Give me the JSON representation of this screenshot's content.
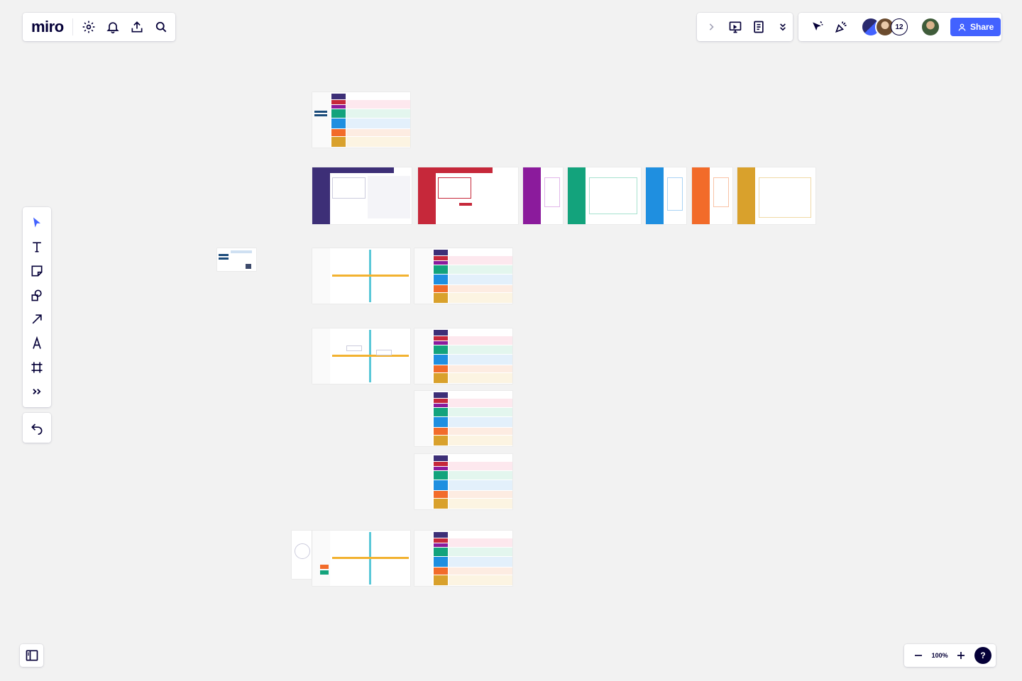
{
  "app": {
    "logo": "miro"
  },
  "header": {
    "tools": [
      "settings-icon",
      "bell-icon",
      "upload-icon",
      "search-icon"
    ],
    "collaborators_count": "12",
    "share_label": "Share"
  },
  "toolbar": {
    "items": [
      "select",
      "text",
      "sticky-note",
      "shapes",
      "arrow",
      "pen",
      "frame",
      "more"
    ]
  },
  "zoom": {
    "level": "100%"
  },
  "help": {
    "label": "?"
  },
  "colors": {
    "accent": "#4262ff",
    "navy": "#3d2f77",
    "red": "#c6283a",
    "purple": "#8b1b9c",
    "green": "#13a37c",
    "blue": "#1f8fe0",
    "orange": "#f26b2a",
    "gold": "#d9a12c"
  }
}
